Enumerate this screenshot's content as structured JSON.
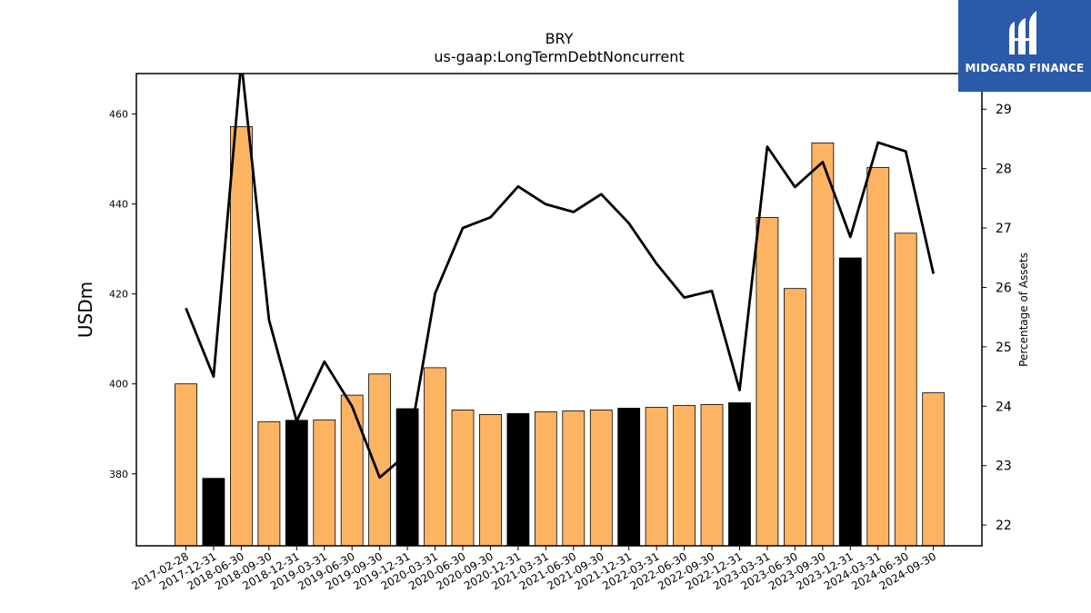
{
  "chart_data": {
    "type": "bar",
    "title": "BRY",
    "subtitle": "us-gaap:LongTermDebtNoncurrent",
    "ylabel": "USDm",
    "y2label": "Percentage of Assets",
    "ylim": [
      364,
      469
    ],
    "y2lim": [
      21.65,
      29.6
    ],
    "yticks": [
      380,
      400,
      420,
      440,
      460
    ],
    "y2ticks": [
      22,
      23,
      24,
      25,
      26,
      27,
      28,
      29
    ],
    "categories": [
      "2017-02-28",
      "2017-12-31",
      "2018-06-30",
      "2018-09-30",
      "2018-12-31",
      "2019-03-31",
      "2019-06-30",
      "2019-09-30",
      "2019-12-31",
      "2020-03-31",
      "2020-06-30",
      "2020-09-30",
      "2020-12-31",
      "2021-03-31",
      "2021-06-30",
      "2021-09-30",
      "2021-12-31",
      "2022-03-31",
      "2022-06-30",
      "2022-09-30",
      "2022-12-31",
      "2023-03-31",
      "2023-06-30",
      "2023-09-30",
      "2023-12-31",
      "2024-03-31",
      "2024-06-30",
      "2024-09-30"
    ],
    "series": [
      {
        "values": [
          400.0,
          379.0,
          457.2,
          391.6,
          391.9,
          392.0,
          397.5,
          402.2,
          394.5,
          403.6,
          394.2,
          393.2,
          393.4,
          393.8,
          394.0,
          394.2,
          394.6,
          394.8,
          395.2,
          395.4,
          395.8,
          437.0,
          421.2,
          453.6,
          428.0,
          448.1,
          433.5,
          398.0
        ],
        "colors": [
          "#fdb462",
          "#000000",
          "#fdb462",
          "#fdb462",
          "#000000",
          "#fdb462",
          "#fdb462",
          "#fdb462",
          "#000000",
          "#fdb462",
          "#fdb462",
          "#fdb462",
          "#000000",
          "#fdb462",
          "#fdb462",
          "#fdb462",
          "#000000",
          "#fdb462",
          "#fdb462",
          "#fdb462",
          "#000000",
          "#fdb462",
          "#fdb462",
          "#fdb462",
          "#000000",
          "#fdb462",
          "#fdb462",
          "#fdb462"
        ]
      },
      {
        "type": "line",
        "axis": "right",
        "values": [
          25.65,
          24.5,
          29.8,
          25.45,
          23.75,
          24.75,
          24.0,
          22.8,
          23.2,
          25.9,
          27.0,
          27.18,
          27.7,
          27.4,
          27.27,
          27.57,
          27.08,
          26.4,
          25.83,
          25.94,
          24.27,
          28.37,
          27.69,
          28.11,
          26.85,
          28.44,
          28.29,
          26.23
        ]
      }
    ],
    "colors": {
      "orange": "#fdb462",
      "black": "#000000"
    }
  },
  "logo": {
    "text": "MIDGARD FINANCE"
  }
}
